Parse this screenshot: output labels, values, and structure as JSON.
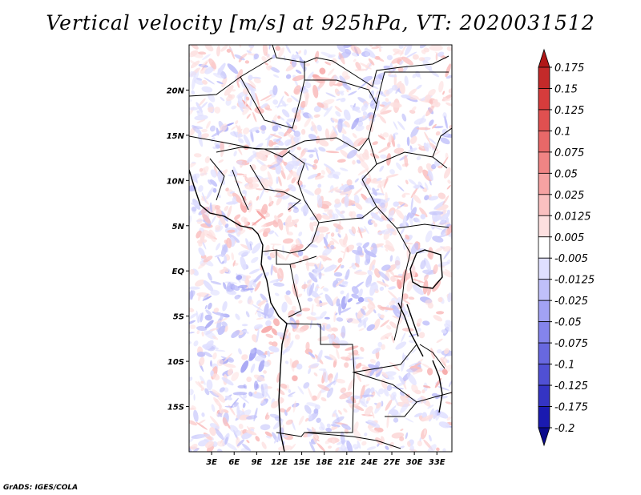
{
  "title": "Vertical velocity [m/s] at 925hPa, VT: 2020031512",
  "credit": "GrADS: IGES/COLA",
  "map": {
    "lon_range": [
      0,
      35
    ],
    "lat_range": [
      -20,
      25
    ],
    "x_ticks": [
      "3E",
      "6E",
      "9E",
      "12E",
      "15E",
      "18E",
      "21E",
      "24E",
      "27E",
      "30E",
      "33E"
    ],
    "x_tick_values": [
      3,
      6,
      9,
      12,
      15,
      18,
      21,
      24,
      27,
      30,
      33
    ],
    "y_ticks": [
      "20N",
      "15N",
      "10N",
      "5N",
      "EQ",
      "5S",
      "10S",
      "15S"
    ],
    "y_tick_values": [
      20,
      15,
      10,
      5,
      0,
      -5,
      -10,
      -15
    ]
  },
  "colorbar": {
    "labels": [
      "0.175",
      "0.15",
      "0.125",
      "0.1",
      "0.075",
      "0.05",
      "0.025",
      "0.0125",
      "0.005",
      "-0.005",
      "-0.0125",
      "-0.025",
      "-0.05",
      "-0.075",
      "-0.1",
      "-0.125",
      "-0.175",
      "-0.2"
    ],
    "colors": [
      "#b01818",
      "#c42a2a",
      "#d63c3c",
      "#e05050",
      "#e86868",
      "#f08484",
      "#f6a2a2",
      "#fac0c0",
      "#fde0e0",
      "#ffffff",
      "#e0e0ff",
      "#c0c0fa",
      "#a2a2f4",
      "#8484ec",
      "#6868e0",
      "#5050d4",
      "#3434c4",
      "#1a1ab0",
      "#0a0a8c"
    ]
  }
}
